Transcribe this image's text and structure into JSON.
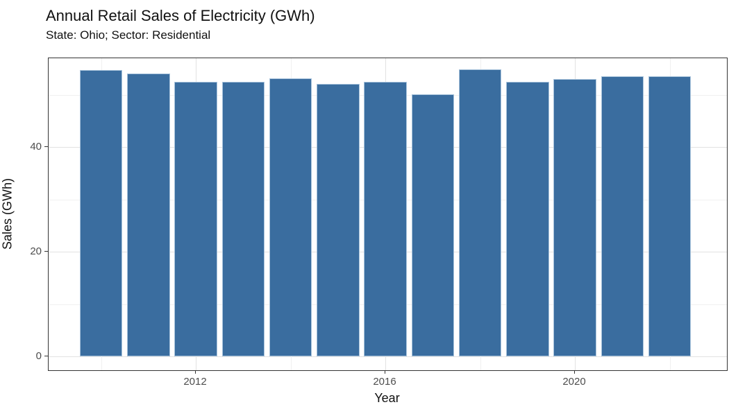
{
  "chart_data": {
    "type": "bar",
    "title": "Annual Retail Sales of Electricity (GWh)",
    "subtitle": "State: Ohio; Sector: Residential",
    "xlabel": "Year",
    "ylabel": "Sales (GWh)",
    "categories": [
      2010,
      2011,
      2012,
      2013,
      2014,
      2015,
      2016,
      2017,
      2018,
      2019,
      2020,
      2021,
      2022
    ],
    "values": [
      54.7,
      54.1,
      52.5,
      52.4,
      53.1,
      52.0,
      52.5,
      50.1,
      54.8,
      52.5,
      53.0,
      53.5,
      53.5
    ],
    "x_ticks": [
      2012,
      2016,
      2020
    ],
    "x_minor_gridlines": [
      2010,
      2014,
      2018,
      2022
    ],
    "y_ticks": [
      0,
      20,
      40
    ],
    "y_minor_gridlines": [
      10,
      30,
      50
    ],
    "ylim": [
      -2.7,
      57.0
    ],
    "xlim": [
      2009.5,
      2022.5
    ],
    "grid": "on",
    "legend": "none",
    "bar_fill_color": "#3a6d9f",
    "bar_edge_color": "#a9c4dc",
    "panel_border_color": "#333333",
    "gridline_color": "#e2e2e2",
    "tick_label_color": "#4d4d4d"
  }
}
